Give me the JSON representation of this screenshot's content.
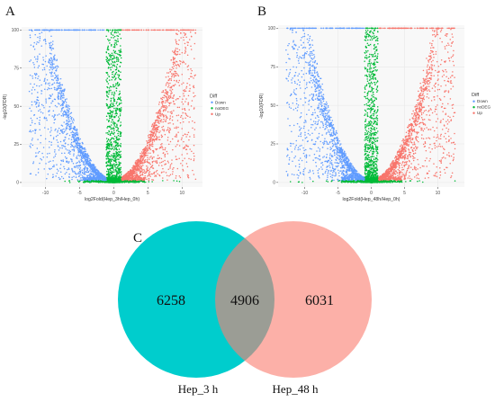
{
  "panels": {
    "a": "A",
    "b": "B",
    "c": "C"
  },
  "colors": {
    "down": "#619cff",
    "nodeg": "#00ba38",
    "up": "#f8766d",
    "venn_left": "#00cdcd",
    "venn_right": "#fa8072",
    "panel_bg": "#f8f8f8",
    "grid": "#e6e6e6"
  },
  "chart_data": [
    {
      "type": "scatter",
      "title": "",
      "xlabel": "log2Fold(Hep_3h/Hep_0h)",
      "ylabel": "-log10(FDR)",
      "xlim": [
        -13.5,
        13
      ],
      "ylim": [
        -3,
        102
      ],
      "xticks": [
        "-10",
        "-5",
        "0",
        "5",
        "10"
      ],
      "xtick_values": [
        -10,
        -5,
        0,
        5,
        10
      ],
      "yticks": [
        "0",
        "25",
        "50",
        "75",
        "100"
      ],
      "ytick_values": [
        0,
        25,
        50,
        75,
        100
      ],
      "grid": true,
      "legend": {
        "title": "Diff",
        "position": "right",
        "entries": [
          "Down",
          "noDEG",
          "Up"
        ]
      },
      "series_shape": {
        "x_range": [
          -12.4,
          12.0
        ],
        "y_cap": 100,
        "nodeg_halfwidth": 1.1
      }
    },
    {
      "type": "scatter",
      "title": "",
      "xlabel": "log2Fold(Hep_48h/Hep_0h)",
      "ylabel": "-log10(FDR)",
      "xlim": [
        -14,
        14
      ],
      "ylim": [
        -3,
        102
      ],
      "xticks": [
        "-10",
        "-5",
        "0",
        "5",
        "10"
      ],
      "xtick_values": [
        -10,
        -5,
        0,
        5,
        10
      ],
      "yticks": [
        "0",
        "25",
        "50",
        "75",
        "100"
      ],
      "ytick_values": [
        0,
        25,
        50,
        75,
        100
      ],
      "grid": true,
      "legend": {
        "title": "Diff",
        "position": "right",
        "entries": [
          "Down",
          "noDEG",
          "Up"
        ]
      },
      "series_shape": {
        "x_range": [
          -12.8,
          12.6
        ],
        "y_cap": 100,
        "nodeg_halfwidth": 1.0
      }
    },
    {
      "type": "venn",
      "title": "",
      "sets": [
        {
          "name": "Hep_3 h",
          "only": "6258"
        },
        {
          "name": "Hep_48 h",
          "only": "6031"
        }
      ],
      "intersection": "4906"
    }
  ]
}
